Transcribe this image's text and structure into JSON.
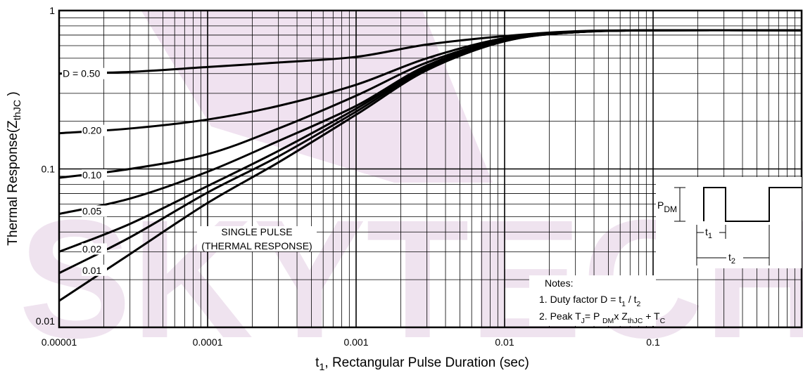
{
  "chart_data": {
    "type": "line",
    "watermark": "SKYTECH",
    "ylabel": [
      "Thermal Response(Z",
      "thJC",
      " )"
    ],
    "xlabel": [
      "t",
      "1",
      ", Rectangular Pulse Duration (sec)"
    ],
    "log_x": true,
    "log_y": true,
    "grid": true,
    "color": "#000000",
    "xlim": [
      1e-05,
      1
    ],
    "ylim": [
      0.01,
      1
    ],
    "xticks": [
      {
        "value": 1e-05,
        "label": "0.00001"
      },
      0.0001,
      0.001,
      0.01,
      0.1
    ],
    "yticks": [
      0.01,
      0.1,
      1
    ],
    "x": [
      1e-05,
      3e-05,
      0.0001,
      0.0003,
      0.001,
      0.003,
      0.01,
      0.03,
      0.1,
      1
    ],
    "series": [
      {
        "name": "D = 0.50",
        "values": [
          0.4,
          0.41,
          0.44,
          0.47,
          0.51,
          0.61,
          0.69,
          0.74,
          0.75,
          0.75
        ]
      },
      {
        "name": "0.20",
        "values": [
          0.168,
          0.18,
          0.205,
          0.25,
          0.34,
          0.5,
          0.67,
          0.73,
          0.75,
          0.75
        ]
      },
      {
        "name": "0.10",
        "values": [
          0.088,
          0.1,
          0.124,
          0.18,
          0.29,
          0.47,
          0.66,
          0.73,
          0.75,
          0.75
        ]
      },
      {
        "name": "0.05",
        "values": [
          0.052,
          0.065,
          0.096,
          0.15,
          0.25,
          0.45,
          0.65,
          0.73,
          0.75,
          0.75
        ]
      },
      {
        "name": "0.02",
        "values": [
          0.03,
          0.045,
          0.078,
          0.13,
          0.24,
          0.44,
          0.65,
          0.73,
          0.75,
          0.75
        ]
      },
      {
        "name": "0.01",
        "values": [
          0.022,
          0.037,
          0.071,
          0.12,
          0.23,
          0.43,
          0.64,
          0.73,
          0.75,
          0.75
        ]
      },
      {
        "name": "SINGLE PULSE",
        "values": [
          0.0147,
          0.029,
          0.061,
          0.11,
          0.22,
          0.42,
          0.64,
          0.73,
          0.75,
          0.75
        ]
      }
    ],
    "annotation": "(THERMAL RESPONSE)",
    "inset": {
      "pdm": [
        "P",
        "DM"
      ],
      "t1": [
        "t",
        "1"
      ],
      "t2": [
        "t",
        "2"
      ]
    },
    "notes": {
      "title": "Notes:",
      "lines": [
        [
          "1. Duty factor D = t",
          "1",
          " / t",
          "2"
        ],
        [
          "2. Peak T",
          "J",
          "= P ",
          "DM",
          "x  Z",
          "thJC",
          " + T",
          "C"
        ]
      ]
    }
  }
}
